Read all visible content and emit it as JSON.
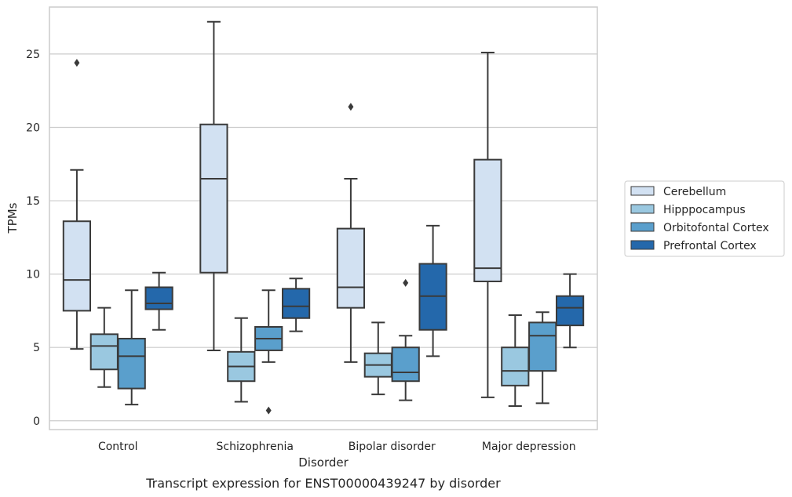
{
  "chart_data": {
    "type": "box",
    "title": "",
    "caption": "Transcript expression for ENST00000439247 by disorder",
    "xlabel": "Disorder",
    "ylabel": "TPMs",
    "ylim": [
      -0.6,
      28.2
    ],
    "yticks": [
      0,
      5,
      10,
      15,
      20,
      25
    ],
    "grid": "horizontal",
    "legend_position": "right",
    "categories": [
      "Control",
      "Schizophrenia",
      "Bipolar disorder",
      "Major depression"
    ],
    "series": [
      {
        "name": "Cerebellum",
        "color": "#d2e1f2",
        "boxes": [
          {
            "whisker_low": 4.9,
            "q1": 7.5,
            "median": 9.6,
            "q3": 13.6,
            "whisker_high": 17.1,
            "outliers": [
              24.4
            ]
          },
          {
            "whisker_low": 4.8,
            "q1": 10.1,
            "median": 16.5,
            "q3": 20.2,
            "whisker_high": 27.2,
            "outliers": []
          },
          {
            "whisker_low": 4.0,
            "q1": 7.7,
            "median": 9.1,
            "q3": 13.1,
            "whisker_high": 16.5,
            "outliers": [
              21.4
            ]
          },
          {
            "whisker_low": 1.6,
            "q1": 9.5,
            "median": 10.4,
            "q3": 17.8,
            "whisker_high": 25.1,
            "outliers": []
          }
        ]
      },
      {
        "name": "Hipppocampus",
        "color": "#9ac8e0",
        "boxes": [
          {
            "whisker_low": 2.3,
            "q1": 3.5,
            "median": 5.1,
            "q3": 5.9,
            "whisker_high": 7.7,
            "outliers": []
          },
          {
            "whisker_low": 1.3,
            "q1": 2.7,
            "median": 3.7,
            "q3": 4.7,
            "whisker_high": 7.0,
            "outliers": []
          },
          {
            "whisker_low": 1.8,
            "q1": 3.0,
            "median": 3.8,
            "q3": 4.6,
            "whisker_high": 6.7,
            "outliers": []
          },
          {
            "whisker_low": 1.0,
            "q1": 2.4,
            "median": 3.4,
            "q3": 5.0,
            "whisker_high": 7.2,
            "outliers": []
          }
        ]
      },
      {
        "name": "Orbitofontal Cortex",
        "color": "#5a9fcc",
        "boxes": [
          {
            "whisker_low": 1.1,
            "q1": 2.2,
            "median": 4.4,
            "q3": 5.6,
            "whisker_high": 8.9,
            "outliers": []
          },
          {
            "whisker_low": 4.0,
            "q1": 4.8,
            "median": 5.6,
            "q3": 6.4,
            "whisker_high": 8.9,
            "outliers": [
              0.7
            ]
          },
          {
            "whisker_low": 1.4,
            "q1": 2.7,
            "median": 3.3,
            "q3": 5.0,
            "whisker_high": 5.8,
            "outliers": [
              9.4
            ]
          },
          {
            "whisker_low": 1.2,
            "q1": 3.4,
            "median": 5.8,
            "q3": 6.7,
            "whisker_high": 7.4,
            "outliers": []
          }
        ]
      },
      {
        "name": "Prefrontal Cortex",
        "color": "#2468ab",
        "boxes": [
          {
            "whisker_low": 6.2,
            "q1": 7.6,
            "median": 8.0,
            "q3": 9.1,
            "whisker_high": 10.1,
            "outliers": []
          },
          {
            "whisker_low": 6.1,
            "q1": 7.0,
            "median": 7.8,
            "q3": 9.0,
            "whisker_high": 9.7,
            "outliers": []
          },
          {
            "whisker_low": 4.4,
            "q1": 6.2,
            "median": 8.5,
            "q3": 10.7,
            "whisker_high": 13.3,
            "outliers": []
          },
          {
            "whisker_low": 5.0,
            "q1": 6.5,
            "median": 7.7,
            "q3": 8.5,
            "whisker_high": 10.0,
            "outliers": []
          }
        ]
      }
    ]
  }
}
